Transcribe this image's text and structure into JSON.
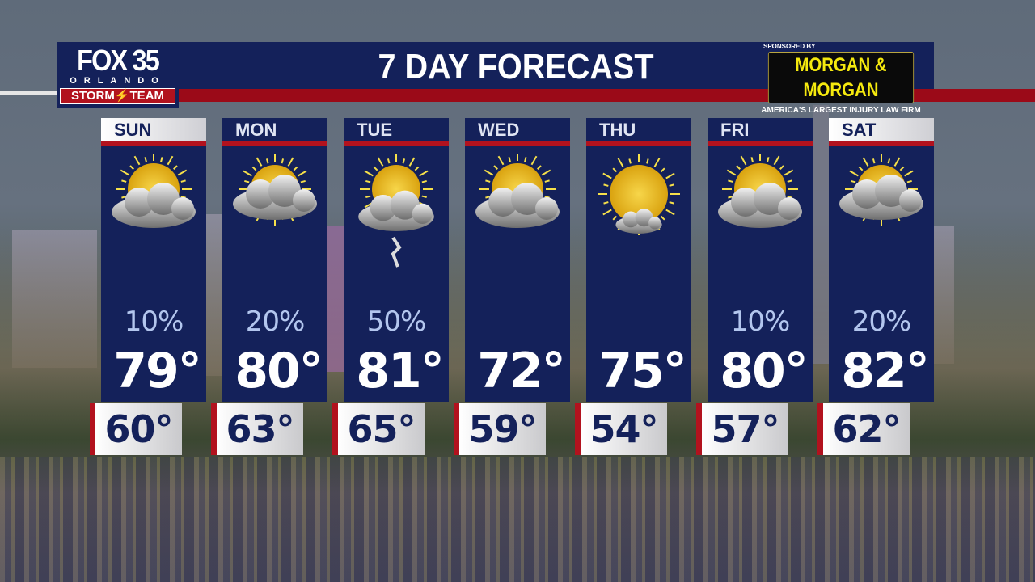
{
  "branding": {
    "station": "FOX 35",
    "city": "ORLANDO",
    "team": "STORM⚡TEAM"
  },
  "header": {
    "title": "7 DAY FORECAST"
  },
  "sponsor": {
    "label": "SPONSORED BY",
    "name": "MORGAN & MORGAN",
    "tagline": "AMERICA'S LARGEST INJURY LAW FIRM"
  },
  "colors": {
    "navy": "#14215a",
    "red": "#b2121e",
    "sponsor_yellow": "#f5e90e"
  },
  "days": [
    {
      "day": "SUN",
      "icon": "partly-cloudy-icon",
      "precip": "10%",
      "high": "79°",
      "low": "60°",
      "weekend": true
    },
    {
      "day": "MON",
      "icon": "mostly-cloudy-icon",
      "precip": "20%",
      "high": "80°",
      "low": "63°",
      "weekend": false
    },
    {
      "day": "TUE",
      "icon": "thunderstorm-icon",
      "precip": "50%",
      "high": "81°",
      "low": "65°",
      "weekend": false
    },
    {
      "day": "WED",
      "icon": "partly-cloudy-icon",
      "precip": "",
      "high": "72°",
      "low": "59°",
      "weekend": false
    },
    {
      "day": "THU",
      "icon": "mostly-sunny-icon",
      "precip": "",
      "high": "75°",
      "low": "54°",
      "weekend": false
    },
    {
      "day": "FRI",
      "icon": "partly-cloudy-icon",
      "precip": "10%",
      "high": "80°",
      "low": "57°",
      "weekend": false
    },
    {
      "day": "SAT",
      "icon": "mostly-cloudy-icon",
      "precip": "20%",
      "high": "82°",
      "low": "62°",
      "weekend": true
    }
  ]
}
